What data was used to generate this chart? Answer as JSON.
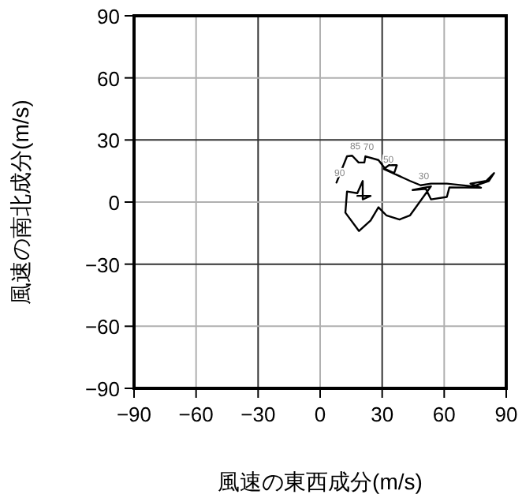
{
  "chart_data": {
    "type": "line",
    "xlabel": "風速の東西成分(m/s)",
    "ylabel": "風速の南北成分(m/s)",
    "xlim": [
      -90,
      90
    ],
    "ylim": [
      -90,
      90
    ],
    "xticks": [
      {
        "value": -90,
        "label": "−90"
      },
      {
        "value": -60,
        "label": "−60"
      },
      {
        "value": -30,
        "label": "−30"
      },
      0,
      30,
      60,
      90
    ],
    "yticks": [
      {
        "value": -90,
        "label": "−90"
      },
      {
        "value": -60,
        "label": "−60"
      },
      {
        "value": -30,
        "label": "−30"
      },
      0,
      30,
      60,
      90
    ],
    "grid": true,
    "marker": "none",
    "line_style": "solid",
    "series": [
      {
        "color": "#000000",
        "x": [
          7.9,
          13.0,
          15.5,
          18.6,
          21.4,
          21.9,
          28.2,
          31.5,
          35.8,
          37.1,
          33.3,
          30.8,
          43.5,
          48.6,
          53.6,
          61.3,
          74.0,
          81.6,
          84.1,
          80.3,
          72.7,
          77.8,
          62.5,
          61.3,
          53.6,
          51.1,
          44.7,
          53.6,
          43.5,
          38.4,
          32.0,
          28.2,
          24.4,
          18.8,
          12.2,
          13.0,
          18.0,
          20.6,
          20.6,
          24.4,
          18.0
        ],
        "values": [
          9.4,
          22.1,
          22.4,
          19.1,
          19.1,
          22.1,
          20.3,
          16.0,
          14.0,
          17.8,
          17.8,
          16.0,
          10.2,
          8.1,
          8.9,
          8.9,
          7.6,
          10.2,
          14.0,
          10.2,
          8.9,
          6.9,
          7.1,
          2.5,
          1.3,
          6.4,
          5.8,
          7.6,
          -6.4,
          -8.4,
          -6.4,
          -2.5,
          -8.9,
          -14.0,
          -5.1,
          5.1,
          4.3,
          10.2,
          1.3,
          3.0,
          3.0
        ]
      }
    ],
    "annotations": [
      {
        "text": "90",
        "x": 7.9,
        "y": 9.4
      },
      {
        "text": "85",
        "x": 15.5,
        "y": 22.4
      },
      {
        "text": "70",
        "x": 21.9,
        "y": 22.1
      },
      {
        "text": "50",
        "x": 31.5,
        "y": 16.0
      },
      {
        "text": "30",
        "x": 48.6,
        "y": 8.1
      }
    ]
  }
}
